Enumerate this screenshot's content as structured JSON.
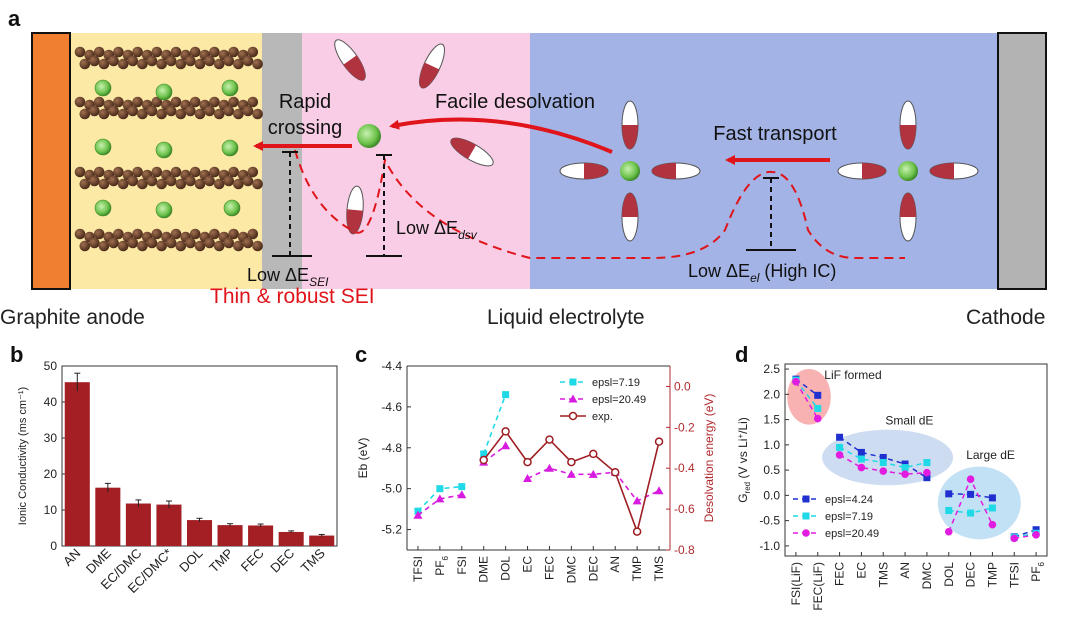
{
  "panel_a": {
    "letter": "a",
    "rapid_crossing_1": "Rapid",
    "rapid_crossing_2": "crossing",
    "facile_desolvation": "Facile desolvation",
    "fast_transport": "Fast transport",
    "low_sei_prefix": "Low ΔE",
    "low_sei_sub": "SEI",
    "low_dsv_prefix": "Low ΔE",
    "low_dsv_sub": "dsv",
    "low_el_prefix": "Low ΔE",
    "low_el_sub": "el",
    "low_el_suffix": " (High IC)",
    "graphite_anode": "Graphite anode",
    "thin_sei": "Thin & robust SEI",
    "liquid_electrolyte": "Liquid electrolyte",
    "cathode": "Cathode",
    "colors": {
      "anode": "#f08030",
      "graphite_bg": "#fce9a6",
      "sei": "#b8b8b8",
      "pink": "#f9cde6",
      "electrolyte": "#a3b3e5",
      "cathode": "#b3b3b3",
      "arrow": "#e0141b",
      "li_ion": "#6cc24a",
      "solvent_red": "#b23340"
    }
  },
  "chart_data": [
    {
      "panel": "b",
      "type": "bar",
      "categories": [
        "AN",
        "DME",
        "EC/DMC",
        "EC/DMC*",
        "DOL",
        "TMP",
        "FEC",
        "DEC",
        "TMS"
      ],
      "values": [
        45.5,
        16.2,
        11.8,
        11.5,
        7.2,
        5.8,
        5.7,
        3.9,
        2.9
      ],
      "errors": [
        2.5,
        1.2,
        1.0,
        1.0,
        0.5,
        0.4,
        0.4,
        0.3,
        0.3
      ],
      "ylabel": "Ionic Conductivity (ms cm⁻¹)",
      "ylim": [
        0,
        50
      ],
      "yticks": [
        0,
        10,
        20,
        30,
        40,
        50
      ],
      "color": "#a31f24"
    },
    {
      "panel": "c",
      "type": "line",
      "categories": [
        "TFSI",
        "PF6",
        "FSI",
        "DME",
        "DOL",
        "EC",
        "FEC",
        "DMC",
        "DEC",
        "AN",
        "TMP",
        "TMS"
      ],
      "category_labels": [
        "TFSI",
        "PF",
        "FSI",
        "DME",
        "DOL",
        "EC",
        "FEC",
        "DMC",
        "DEC",
        "AN",
        "TMP",
        "TMS"
      ],
      "category_subscripts": [
        "",
        "6",
        "",
        "",
        "",
        "",
        "",
        "",
        "",
        "",
        "",
        ""
      ],
      "ylabel_left": "Eb (eV)",
      "ylabel_right": "Desolvation energy (eV)",
      "ylim_left": [
        -5.3,
        -4.4
      ],
      "yticks_left": [
        -5.2,
        -5.0,
        -4.8,
        -4.6,
        -4.4
      ],
      "ylim_right": [
        -0.8,
        0.1
      ],
      "yticks_right": [
        -0.8,
        -0.6,
        -0.4,
        -0.2,
        0.0
      ],
      "series": [
        {
          "name": "epsl=7.19",
          "axis": "left",
          "color": "#1fd9e6",
          "marker": "square",
          "groups": [
            [
              0,
              2
            ],
            [
              3,
              4
            ]
          ],
          "values": [
            -5.11,
            -5.0,
            -4.99,
            -4.83,
            -4.54,
            null,
            null,
            null,
            null,
            null,
            null,
            null
          ]
        },
        {
          "name": "epsl=20.49",
          "axis": "left",
          "color": "#d81be0",
          "marker": "triangle",
          "groups": [
            [
              0,
              2
            ],
            [
              3,
              4
            ],
            [
              5,
              11
            ]
          ],
          "values": [
            -5.13,
            -5.05,
            -5.03,
            -4.87,
            -4.79,
            -4.95,
            -4.9,
            -4.93,
            -4.93,
            -4.92,
            -5.06,
            -5.01
          ]
        },
        {
          "name": "exp.",
          "axis": "right",
          "color": "#9e1e24",
          "marker": "circle",
          "groups": [
            [
              3,
              11
            ]
          ],
          "values": [
            null,
            null,
            null,
            -0.36,
            -0.22,
            -0.37,
            -0.26,
            -0.37,
            -0.33,
            -0.42,
            -0.71,
            -0.27
          ]
        }
      ]
    },
    {
      "panel": "d",
      "type": "line",
      "categories": [
        "FSI(LiF)",
        "FEC(LiF)",
        "FEC",
        "EC",
        "TMS",
        "AN",
        "DMC",
        "DOL",
        "DEC",
        "TMP",
        "TFSI",
        "PF6"
      ],
      "category_labels": [
        "FSI(LiF)",
        "FEC(LiF)",
        "FEC",
        "EC",
        "TMS",
        "AN",
        "DMC",
        "DOL",
        "DEC",
        "TMP",
        "TFSI",
        "PF"
      ],
      "category_subscripts": [
        "",
        "",
        "",
        "",
        "",
        "",
        "",
        "",
        "",
        "",
        "",
        "6"
      ],
      "ylabel": "G",
      "ylabel_sub": "red",
      "ylabel_suffix": " (V vs Li",
      "ylabel_sup": "+",
      "ylabel_end": "/Li)",
      "ylim": [
        -1.2,
        2.6
      ],
      "yticks": [
        -1.0,
        -0.5,
        0.0,
        0.5,
        1.0,
        1.5,
        2.0,
        2.5
      ],
      "annotations": [
        {
          "text": "LiF formed",
          "x": 1.3,
          "y": 2.3
        },
        {
          "text": "Small dE",
          "x": 4.1,
          "y": 1.4
        },
        {
          "text": "Large dE",
          "x": 7.8,
          "y": 0.72
        }
      ],
      "regions": [
        {
          "cx": 0.6,
          "cy": 1.95,
          "rx": 1.0,
          "ry": 0.55,
          "color": "#f7a4a4"
        },
        {
          "cx": 4.2,
          "cy": 0.75,
          "rx": 3.0,
          "ry": 0.55,
          "color": "#c5d6ee"
        },
        {
          "cx": 8.4,
          "cy": -0.15,
          "rx": 1.9,
          "ry": 0.72,
          "color": "#b9dcf3"
        }
      ],
      "series": [
        {
          "name": "epsl=4.24",
          "color": "#2030d0",
          "marker": "square",
          "groups": [
            [
              0,
              1
            ],
            [
              2,
              6
            ],
            [
              7,
              9
            ],
            [
              10,
              11
            ]
          ],
          "values": [
            2.3,
            1.98,
            1.15,
            0.85,
            0.75,
            0.62,
            0.35,
            0.03,
            0.02,
            -0.05,
            -0.82,
            -0.68
          ]
        },
        {
          "name": "epsl=7.19",
          "color": "#1fd9e6",
          "marker": "square",
          "groups": [
            [
              0,
              1
            ],
            [
              2,
              6
            ],
            [
              7,
              9
            ],
            [
              10,
              11
            ]
          ],
          "values": [
            2.28,
            1.72,
            0.95,
            0.72,
            0.65,
            0.55,
            0.65,
            -0.3,
            -0.35,
            -0.25,
            -0.83,
            -0.75
          ]
        },
        {
          "name": "epsl=20.49",
          "color": "#e21be0",
          "marker": "circle",
          "groups": [
            [
              0,
              1
            ],
            [
              2,
              6
            ],
            [
              7,
              9
            ],
            [
              10,
              11
            ]
          ],
          "values": [
            2.25,
            1.52,
            0.8,
            0.55,
            0.48,
            0.42,
            0.45,
            -0.72,
            0.32,
            -0.58,
            -0.85,
            -0.78
          ]
        }
      ]
    }
  ],
  "labels": {
    "panel_b": "b",
    "panel_c": "c",
    "panel_d": "d"
  }
}
